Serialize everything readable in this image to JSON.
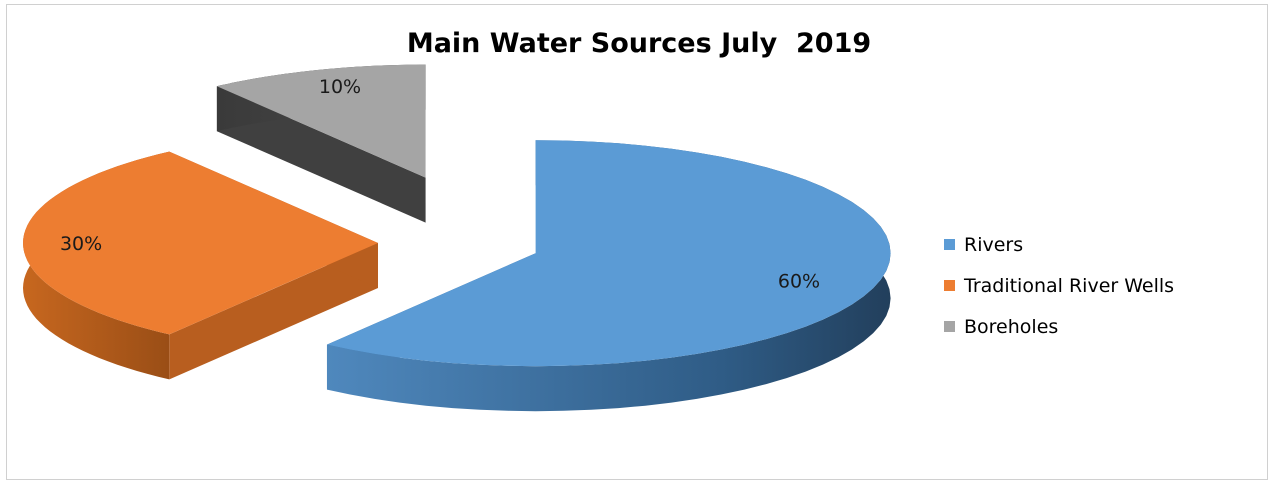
{
  "chart_data": {
    "type": "pie",
    "title": "Main Water Sources July  2019",
    "categories": [
      "Rivers",
      "Traditional River Wells",
      "Boreholes"
    ],
    "values": [
      60,
      30,
      10
    ],
    "data_labels": [
      "60%",
      "30%",
      "10%"
    ],
    "legend_position": "right",
    "style": "3D exploded pie",
    "colors": [
      "#5b9bd5",
      "#ed7d31",
      "#a5a5a5"
    ],
    "side_colors": [
      "#3a6d9e",
      "#b85e1f",
      "#404040"
    ]
  }
}
